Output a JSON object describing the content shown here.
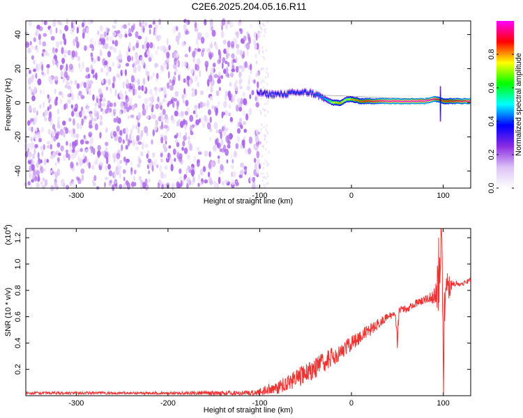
{
  "title": "C2E6.2025.204.05.16.R11",
  "chart_data": [
    {
      "type": "heatmap",
      "xlabel": "Height of straight line (km)",
      "ylabel": "Frequency (Hz)",
      "xlim": [
        -355,
        130
      ],
      "ylim": [
        -50,
        48
      ],
      "xticks": [
        -300,
        -200,
        -100,
        0,
        100
      ],
      "yticks": [
        -40,
        -20,
        0,
        20,
        40
      ],
      "colorbar": {
        "label": "Normalized spectral amplitude",
        "range": [
          0,
          1
        ],
        "ticks": [
          "0.0",
          "0.2",
          "0.4",
          "0.6",
          "0.8"
        ],
        "tick_values": [
          0.0,
          0.2,
          0.4,
          0.6,
          0.8
        ],
        "colors": [
          "#ffffff",
          "#dcc2f5",
          "#8a2be2",
          "#0000ff",
          "#00ffff",
          "#00ff00",
          "#ffff00",
          "#ff0000",
          "#ff00ff"
        ]
      },
      "noise_region": {
        "x": [
          -355,
          -100
        ],
        "level": [
          0.05,
          0.2
        ]
      },
      "signal_track": {
        "x": [
          -103,
          -90,
          -75,
          -60,
          -45,
          -35,
          -28,
          -20,
          -12,
          -5,
          0,
          10,
          20,
          30,
          40,
          50,
          60,
          70,
          80,
          88,
          95,
          100,
          110,
          120,
          130
        ],
        "freq": [
          6,
          5,
          5,
          6,
          6,
          4,
          2,
          0,
          0,
          2,
          2,
          1,
          1,
          1,
          1,
          1,
          1,
          1,
          1,
          2,
          2,
          1,
          1,
          1,
          1
        ],
        "level": [
          0.35,
          0.4,
          0.4,
          0.4,
          0.4,
          0.45,
          0.5,
          0.75,
          0.8,
          0.7,
          0.8,
          0.85,
          0.9,
          0.95,
          1.0,
          1.0,
          1.0,
          1.0,
          1.0,
          1.0,
          0.9,
          0.85,
          0.9,
          0.95,
          1.0
        ]
      }
    },
    {
      "type": "line",
      "xlabel": "Height of straight line (km)",
      "ylabel": "SNR (10 * v/v)",
      "scale_label": "(x10",
      "scale_exp": "4",
      "scale_close": ")",
      "xlim": [
        -355,
        130
      ],
      "ylim": [
        0,
        1.27
      ],
      "xticks": [
        -300,
        -200,
        -100,
        0,
        100
      ],
      "yticks": [
        "0.2",
        "0.4",
        "0.6",
        "0.8",
        "1.0",
        "1.2"
      ],
      "ytick_values": [
        0.2,
        0.4,
        0.6,
        0.8,
        1.0,
        1.2
      ],
      "color": "#ee3333",
      "x": [
        -355,
        -300,
        -200,
        -110,
        -100,
        -90,
        -80,
        -70,
        -60,
        -50,
        -40,
        -30,
        -20,
        -10,
        0,
        10,
        20,
        30,
        40,
        48,
        50,
        52,
        60,
        70,
        80,
        90,
        95,
        98,
        100,
        103,
        110,
        120,
        130
      ],
      "y": [
        0.02,
        0.02,
        0.02,
        0.02,
        0.03,
        0.05,
        0.06,
        0.1,
        0.13,
        0.17,
        0.21,
        0.25,
        0.3,
        0.34,
        0.4,
        0.45,
        0.5,
        0.55,
        0.6,
        0.62,
        0.45,
        0.65,
        0.66,
        0.7,
        0.73,
        0.75,
        0.9,
        1.25,
        0.3,
        0.8,
        0.85,
        0.85,
        0.88
      ],
      "spread": [
        0.01,
        0.01,
        0.01,
        0.02,
        0.03,
        0.04,
        0.05,
        0.06,
        0.07,
        0.08,
        0.08,
        0.08,
        0.07,
        0.06,
        0.06,
        0.05,
        0.05,
        0.04,
        0.03,
        0.03,
        0.1,
        0.03,
        0.03,
        0.03,
        0.03,
        0.05,
        0.3,
        0.2,
        0.4,
        0.15,
        0.03,
        0.02,
        0.02
      ]
    }
  ]
}
